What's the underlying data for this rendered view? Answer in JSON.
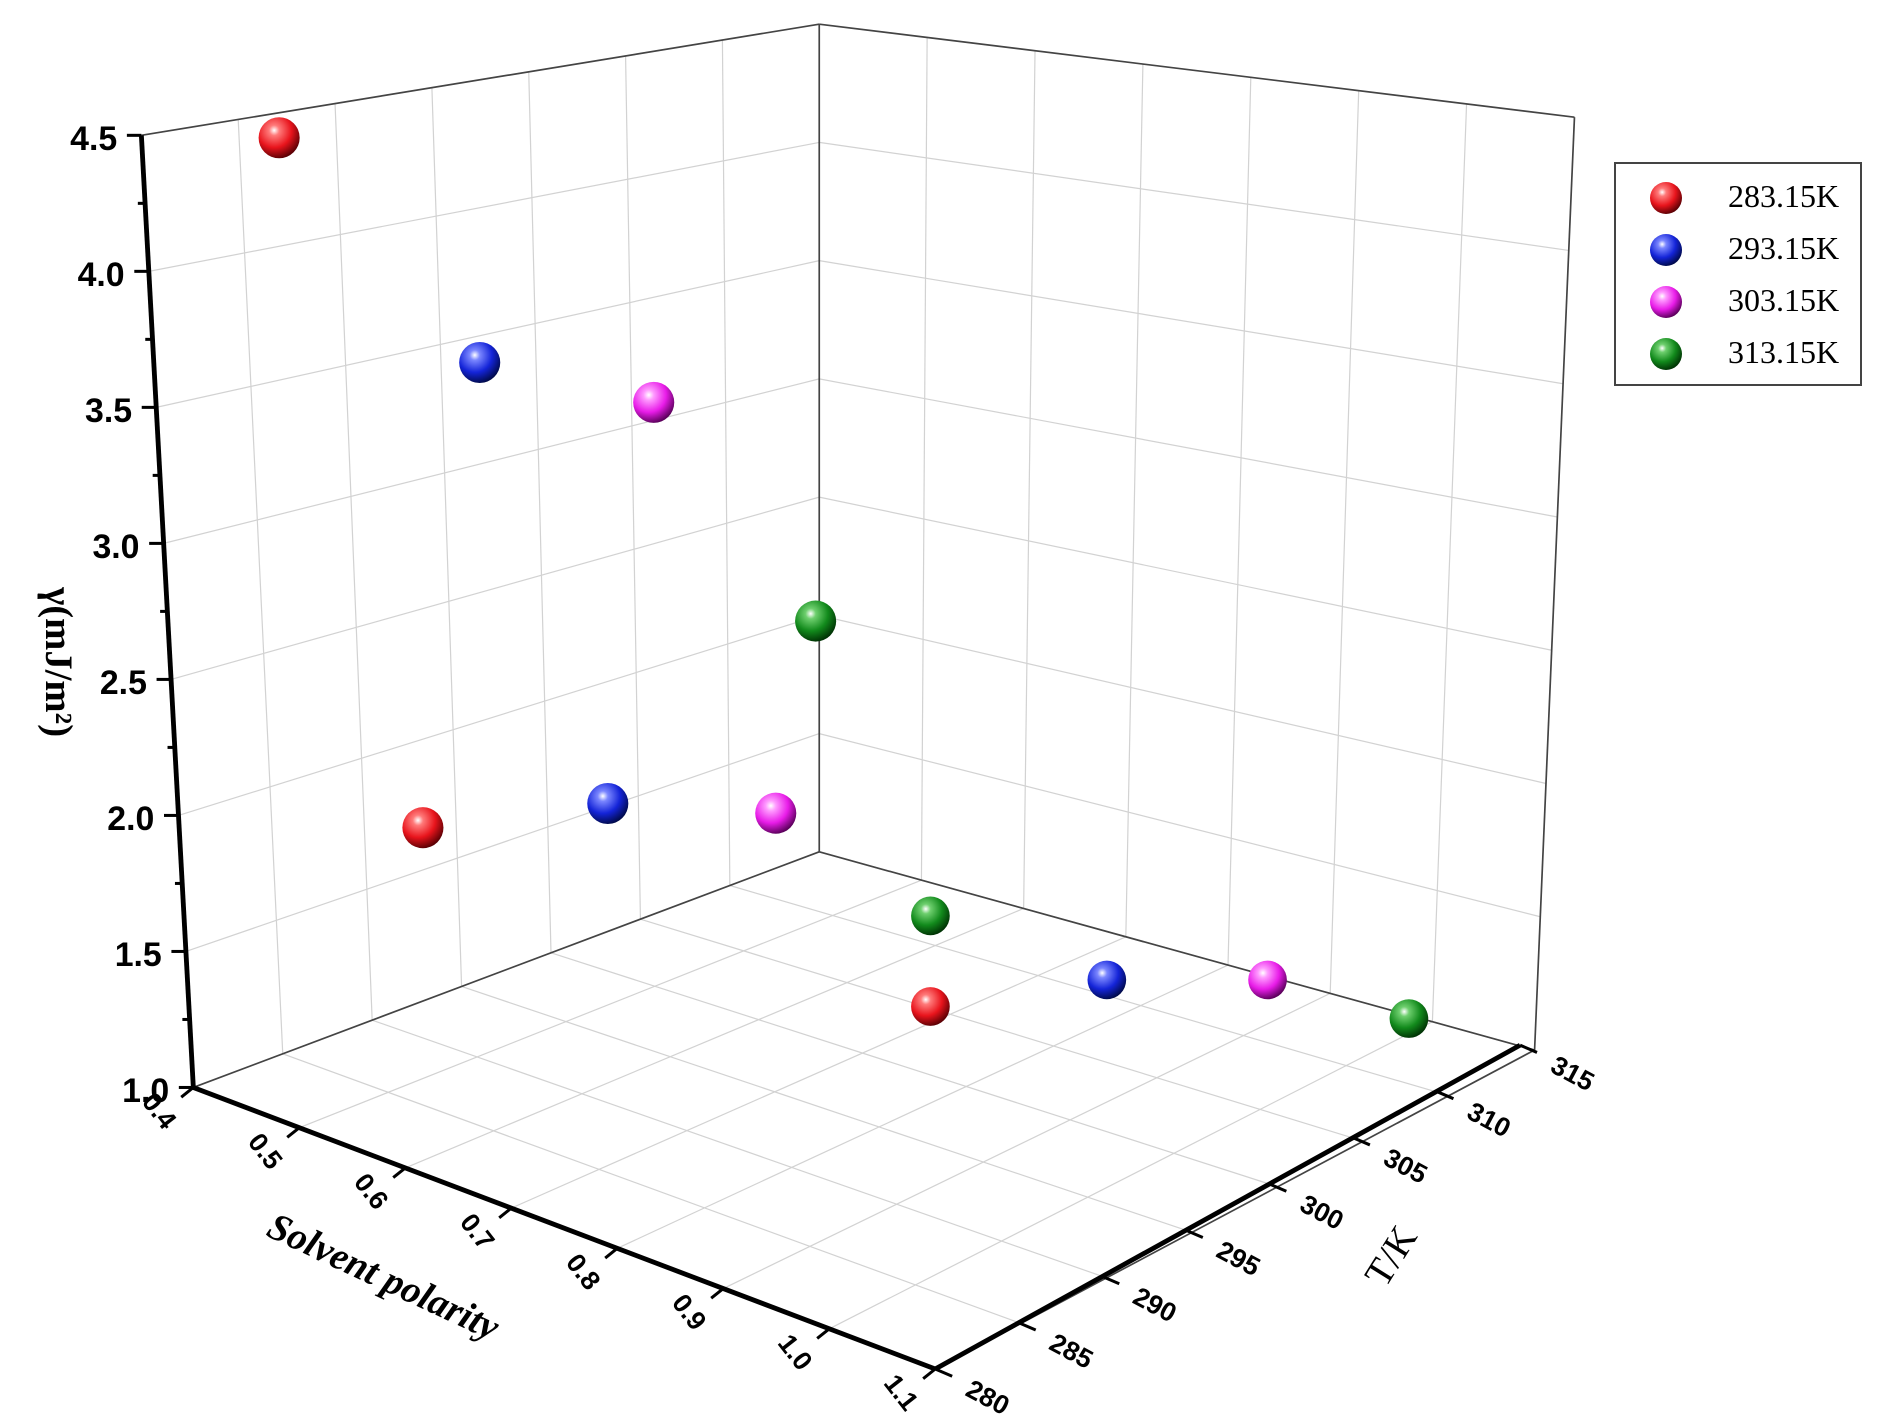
{
  "chart_data": {
    "type": "scatter",
    "axes": {
      "x": {
        "label": "Solvent polarity",
        "range": [
          0.4,
          1.1
        ],
        "ticks": [
          "0.4",
          "0.5",
          "0.6",
          "0.7",
          "0.8",
          "0.9",
          "1.0",
          "1.1"
        ]
      },
      "y": {
        "label": "T/K",
        "range": [
          280,
          315
        ],
        "ticks": [
          "280",
          "285",
          "290",
          "295",
          "300",
          "305",
          "310",
          "315"
        ]
      },
      "z": {
        "label": "γ(mJ/m²)",
        "range": [
          1.0,
          4.5
        ],
        "ticks": [
          "1.0",
          "1.5",
          "2.0",
          "2.5",
          "3.0",
          "3.5",
          "4.0",
          "4.5"
        ]
      }
    },
    "grid": true,
    "legend_position": "right",
    "series": [
      {
        "name": "283.15K",
        "color": "#e8141c",
        "points": [
          {
            "x": 0.5,
            "y": 283.15,
            "z": 4.5
          }
        ]
      },
      {
        "name": "293.15K",
        "color": "#1424d8",
        "points": [
          {
            "x": 0.7,
            "y": 293.15,
            "z": 3.75
          }
        ]
      },
      {
        "name": "303.15K",
        "color": "#e81ce8",
        "points": [
          {
            "x": 0.9,
            "y": 303.15,
            "z": 3.6
          }
        ]
      },
      {
        "name": "313.15K",
        "color": "#128a1c",
        "points": [
          {
            "x": 1.05,
            "y": 313.15,
            "z": 2.8
          }
        ]
      }
    ],
    "wall_projection_points": [
      {
        "color": "#e8141c",
        "position": [
          350,
          685
        ]
      },
      {
        "color": "#1424d8",
        "position": [
          503,
          665
        ]
      },
      {
        "color": "#e81ce8",
        "position": [
          642,
          673
        ]
      }
    ],
    "floor_projection_points": [
      {
        "color": "#128a1c",
        "position": [
          770,
          758
        ]
      },
      {
        "color": "#e8141c",
        "position": [
          770,
          833
        ]
      },
      {
        "color": "#1424d8",
        "position": [
          916,
          811
        ]
      },
      {
        "color": "#e81ce8",
        "position": [
          1049,
          811
        ]
      },
      {
        "color": "#128a1c",
        "position": [
          1166,
          843
        ]
      }
    ]
  },
  "legend": {
    "items": [
      {
        "label": "283.15K",
        "color": "#e8141c"
      },
      {
        "label": "293.15K",
        "color": "#1424d8"
      },
      {
        "label": "303.15K",
        "color": "#e81ce8"
      },
      {
        "label": "313.15K",
        "color": "#128a1c"
      }
    ]
  }
}
